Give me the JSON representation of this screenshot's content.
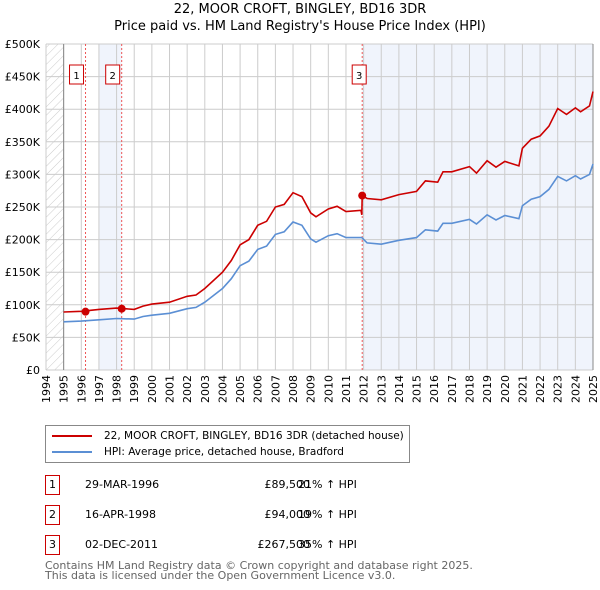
{
  "title": "22, MOOR CROFT, BINGLEY, BD16 3DR",
  "subtitle": "Price paid vs. HM Land Registry's House Price Index (HPI)",
  "chart_data": {
    "type": "line",
    "title": "22, MOOR CROFT, BINGLEY, BD16 3DR",
    "xlim": [
      1994,
      2025
    ],
    "ylim": [
      0,
      500
    ],
    "x_ticks": [
      "1994",
      "1995",
      "1996",
      "1997",
      "1998",
      "1999",
      "2000",
      "2001",
      "2002",
      "2003",
      "2004",
      "2005",
      "2006",
      "2007",
      "2008",
      "2009",
      "2010",
      "2011",
      "2012",
      "2013",
      "2014",
      "2015",
      "2016",
      "2017",
      "2018",
      "2019",
      "2020",
      "2021",
      "2022",
      "2023",
      "2024",
      "2025"
    ],
    "y_ticks": [
      {
        "v": 0,
        "label": "£0"
      },
      {
        "v": 50,
        "label": "£50K"
      },
      {
        "v": 100,
        "label": "£100K"
      },
      {
        "v": 150,
        "label": "£150K"
      },
      {
        "v": 200,
        "label": "£200K"
      },
      {
        "v": 250,
        "label": "£250K"
      },
      {
        "v": 300,
        "label": "£300K"
      },
      {
        "v": 350,
        "label": "£350K"
      },
      {
        "v": 400,
        "label": "£400K"
      },
      {
        "v": 450,
        "label": "£450K"
      },
      {
        "v": 500,
        "label": "£500K"
      }
    ],
    "grid": true,
    "series": [
      {
        "name": "22, MOOR CROFT, BINGLEY, BD16 3DR (detached house)",
        "color": "#cc0000",
        "x": [
          1995,
          1996,
          1997,
          1998,
          1999,
          1999.5,
          2000,
          2001,
          2002,
          2002.5,
          2003,
          2004,
          2004.5,
          2005,
          2005.5,
          2006,
          2006.5,
          2007,
          2007.5,
          2008,
          2008.5,
          2009,
          2009.3,
          2010,
          2010.5,
          2011,
          2011.85,
          2011.9,
          2011.92,
          2012.2,
          2013,
          2014,
          2015,
          2015.5,
          2016.2,
          2016.5,
          2017,
          2018,
          2018.4,
          2019,
          2019.5,
          2020,
          2020.8,
          2021,
          2021.5,
          2022,
          2022.5,
          2023,
          2023.5,
          2024,
          2024.3,
          2024.8,
          2025
        ],
        "y": [
          89,
          90,
          93,
          95,
          93,
          98,
          101,
          104,
          113,
          115,
          125,
          150,
          168,
          192,
          200,
          222,
          228,
          250,
          254,
          272,
          266,
          241,
          235,
          247,
          251,
          243,
          245,
          238,
          267.5,
          263,
          261,
          269,
          274,
          290,
          288,
          304,
          304,
          312,
          302,
          321,
          311,
          320,
          313,
          340,
          354,
          359,
          374,
          401,
          392,
          402,
          396,
          405,
          427
        ]
      },
      {
        "name": "HPI: Average price, detached house, Bradford",
        "color": "#5b8fd4",
        "x": [
          1995,
          1996,
          1997,
          1998,
          1999,
          1999.5,
          2000,
          2001,
          2002,
          2002.5,
          2003,
          2004,
          2004.5,
          2005,
          2005.5,
          2006,
          2006.5,
          2007,
          2007.5,
          2008,
          2008.5,
          2009,
          2009.3,
          2010,
          2010.5,
          2011,
          2011.9,
          2012.2,
          2013,
          2014,
          2015,
          2015.5,
          2016.2,
          2016.5,
          2017,
          2018,
          2018.4,
          2019,
          2019.5,
          2020,
          2020.8,
          2021,
          2021.5,
          2022,
          2022.5,
          2023,
          2023.5,
          2024,
          2024.3,
          2024.8,
          2025
        ],
        "y": [
          74,
          75,
          77,
          79,
          78,
          82,
          84,
          87,
          94,
          96,
          104,
          125,
          140,
          160,
          167,
          185,
          190,
          208,
          212,
          227,
          222,
          201,
          196,
          206,
          209,
          203,
          203,
          195,
          193,
          199,
          203,
          215,
          213,
          225,
          225,
          231,
          224,
          238,
          230,
          237,
          232,
          252,
          262,
          266,
          277,
          297,
          290,
          298,
          293,
          300,
          316
        ]
      }
    ],
    "sales": [
      {
        "label": "1",
        "x": 1996.24,
        "y": 89.5
      },
      {
        "label": "2",
        "x": 1998.29,
        "y": 94
      },
      {
        "label": "3",
        "x": 2011.92,
        "y": 267.5
      }
    ]
  },
  "legend": {
    "price": "22, MOOR CROFT, BINGLEY, BD16 3DR (detached house)",
    "hpi": "HPI: Average price, detached house, Bradford"
  },
  "transactions": [
    {
      "num": "1",
      "date": "29-MAR-1996",
      "price": "£89,500",
      "hpi": "21% ↑ HPI"
    },
    {
      "num": "2",
      "date": "16-APR-1998",
      "price": "£94,000",
      "hpi": "19% ↑ HPI"
    },
    {
      "num": "3",
      "date": "02-DEC-2011",
      "price": "£267,500",
      "hpi": "35% ↑ HPI"
    }
  ],
  "footer": {
    "line1": "Contains HM Land Registry data © Crown copyright and database right 2025.",
    "line2": "This data is licensed under the Open Government Licence v3.0."
  }
}
